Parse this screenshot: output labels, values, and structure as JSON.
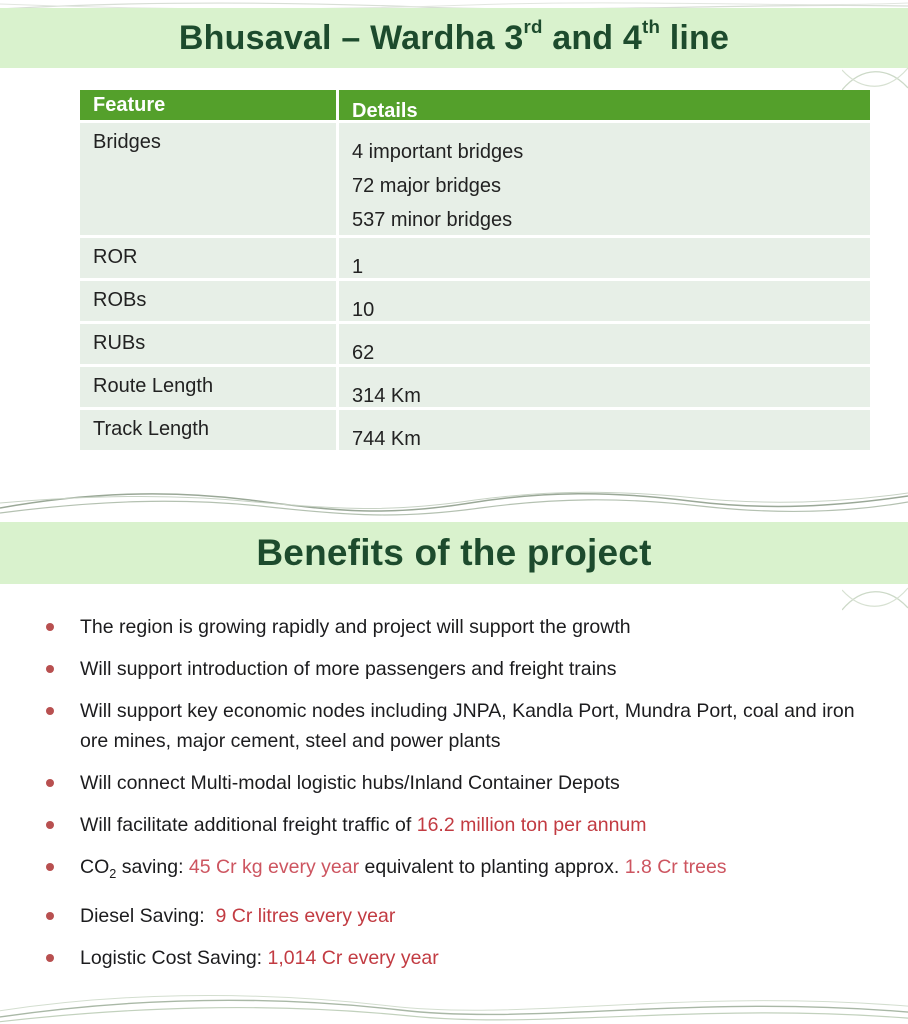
{
  "palette": {
    "band_bg": "#d9f2cd",
    "heading_green": "#1d4b2d",
    "table_header_bg": "#54a02b",
    "table_header_text": "#ffffff",
    "table_cell_bg": "#e7efe7",
    "body_text": "#1c1c1e",
    "red": "#c23b42",
    "red_light": "#cd5560",
    "bullet_dot": "#b85050",
    "wave_line": "#9aa897"
  },
  "header": {
    "title_parts": [
      "Bhusaval – Wardha 3",
      "rd",
      " and 4",
      "th",
      " line"
    ]
  },
  "table": {
    "columns": [
      "Feature",
      "Details"
    ],
    "rows": [
      {
        "feature": "Bridges",
        "details": [
          "4 important bridges",
          "72 major bridges",
          "537 minor bridges"
        ]
      },
      {
        "feature": "ROR",
        "details": [
          "1"
        ]
      },
      {
        "feature": "ROBs",
        "details": [
          "10"
        ]
      },
      {
        "feature": "RUBs",
        "details": [
          "62"
        ]
      },
      {
        "feature": "Route Length",
        "details": [
          "314 Km"
        ]
      },
      {
        "feature": "Track Length",
        "details": [
          "744 Km"
        ]
      }
    ]
  },
  "benefits": {
    "heading": "Benefits of the project",
    "items": [
      {
        "segments": [
          {
            "t": "The region is growing rapidly and project will support the growth"
          }
        ]
      },
      {
        "segments": [
          {
            "t": "Will support introduction of more passengers and freight trains"
          }
        ]
      },
      {
        "segments": [
          {
            "t": "Will support key economic nodes including JNPA, Kandla Port, Mundra Port, coal and iron ore mines, major cement, steel and power plants"
          }
        ]
      },
      {
        "segments": [
          {
            "t": "Will connect Multi-modal logistic hubs/Inland Container Depots"
          }
        ]
      },
      {
        "segments": [
          {
            "t": "Will facilitate additional freight traffic of "
          },
          {
            "t": "16.2 million ton per annum",
            "style": "red"
          }
        ]
      },
      {
        "segments": [
          {
            "t": "CO"
          },
          {
            "t": "2",
            "sub": true
          },
          {
            "t": " saving: "
          },
          {
            "t": "45 Cr kg every year ",
            "style": "red_light"
          },
          {
            "t": "equivalent to planting approx. "
          },
          {
            "t": "1.8 Cr trees",
            "style": "red_light"
          }
        ]
      },
      {
        "segments": [
          {
            "t": "Diesel Saving:  "
          },
          {
            "t": "9 Cr litres every year",
            "style": "red"
          }
        ]
      },
      {
        "segments": [
          {
            "t": "Logistic Cost Saving: "
          },
          {
            "t": "1,014 Cr every year",
            "style": "red"
          }
        ]
      }
    ]
  }
}
